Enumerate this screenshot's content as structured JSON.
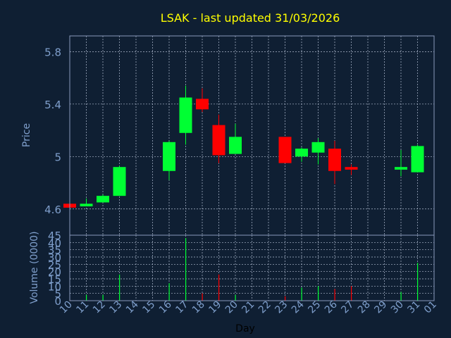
{
  "chart_data": [
    {
      "type": "candlestick",
      "title": "LSAK - last updated 31/03/2026",
      "ylabel": "Price",
      "ylim": [
        4.4,
        5.92
      ],
      "yticks": [
        4.6,
        5,
        5.4,
        5.8
      ],
      "ytick_labels": [
        "4.6",
        "5",
        "5.4",
        "5.8"
      ],
      "grid": true,
      "up_color": "#00ff33",
      "down_color": "#ff0000",
      "candles": [
        {
          "day": "10",
          "open": 4.64,
          "close": 4.61,
          "high": 4.64,
          "low": 4.61
        },
        {
          "day": "11",
          "open": 4.62,
          "close": 4.64,
          "high": 4.68,
          "low": 4.62
        },
        {
          "day": "12",
          "open": 4.65,
          "close": 4.7,
          "high": 4.71,
          "low": 4.65
        },
        {
          "day": "13",
          "open": 4.7,
          "close": 4.92,
          "high": 4.93,
          "low": 4.7
        },
        {
          "day": "16",
          "open": 4.89,
          "close": 5.11,
          "high": 5.12,
          "low": 4.82
        },
        {
          "day": "17",
          "open": 5.18,
          "close": 5.45,
          "high": 5.54,
          "low": 5.09
        },
        {
          "day": "18",
          "open": 5.44,
          "close": 5.36,
          "high": 5.52,
          "low": 5.34
        },
        {
          "day": "19",
          "open": 5.24,
          "close": 5.01,
          "high": 5.32,
          "low": 4.95
        },
        {
          "day": "20",
          "open": 5.02,
          "close": 5.15,
          "high": 5.25,
          "low": 5.02
        },
        {
          "day": "23",
          "open": 5.15,
          "close": 4.95,
          "high": 5.15,
          "low": 4.95
        },
        {
          "day": "24",
          "open": 5.0,
          "close": 5.06,
          "high": 5.07,
          "low": 4.96
        },
        {
          "day": "25",
          "open": 5.03,
          "close": 5.11,
          "high": 5.14,
          "low": 4.94
        },
        {
          "day": "26",
          "open": 5.06,
          "close": 4.89,
          "high": 5.12,
          "low": 4.79
        },
        {
          "day": "27",
          "open": 4.92,
          "close": 4.9,
          "high": 4.94,
          "low": 4.86
        },
        {
          "day": "30",
          "open": 4.9,
          "close": 4.92,
          "high": 5.05,
          "low": 4.85
        },
        {
          "day": "31",
          "open": 4.88,
          "close": 5.08,
          "high": 5.09,
          "low": 4.88
        }
      ]
    },
    {
      "type": "bar",
      "ylabel": "Volume (0000)",
      "xlabel": "Day",
      "ylim": [
        0,
        45
      ],
      "yticks": [
        0,
        5,
        10,
        15,
        20,
        25,
        30,
        35,
        40,
        45
      ],
      "ytick_labels": [
        "0",
        "5",
        "10",
        "15",
        "20",
        "25",
        "30",
        "35",
        "40",
        "45"
      ],
      "categories": [
        "10",
        "11",
        "12",
        "13",
        "14",
        "15",
        "16",
        "17",
        "18",
        "19",
        "20",
        "21",
        "22",
        "23",
        "24",
        "25",
        "26",
        "27",
        "28",
        "29",
        "30",
        "31",
        "01"
      ],
      "volumes": [
        {
          "day": "10",
          "value": 0.5,
          "direction": "down"
        },
        {
          "day": "11",
          "value": 4,
          "direction": "up"
        },
        {
          "day": "12",
          "value": 4,
          "direction": "up"
        },
        {
          "day": "13",
          "value": 18,
          "direction": "up"
        },
        {
          "day": "16",
          "value": 12,
          "direction": "up"
        },
        {
          "day": "17",
          "value": 43,
          "direction": "up"
        },
        {
          "day": "18",
          "value": 5,
          "direction": "down"
        },
        {
          "day": "19",
          "value": 18,
          "direction": "down"
        },
        {
          "day": "20",
          "value": 4,
          "direction": "up"
        },
        {
          "day": "23",
          "value": 3,
          "direction": "down"
        },
        {
          "day": "24",
          "value": 9,
          "direction": "up"
        },
        {
          "day": "25",
          "value": 10,
          "direction": "up"
        },
        {
          "day": "26",
          "value": 8,
          "direction": "down"
        },
        {
          "day": "27",
          "value": 10,
          "direction": "down"
        },
        {
          "day": "30",
          "value": 6,
          "direction": "up"
        },
        {
          "day": "31",
          "value": 26,
          "direction": "up"
        }
      ]
    }
  ],
  "colors": {
    "background": "#0f1f33",
    "title": "#ffff00",
    "axis_text": "#7f9fcc",
    "axis_line": "#8899bb",
    "grid": "#b0bcd0"
  }
}
